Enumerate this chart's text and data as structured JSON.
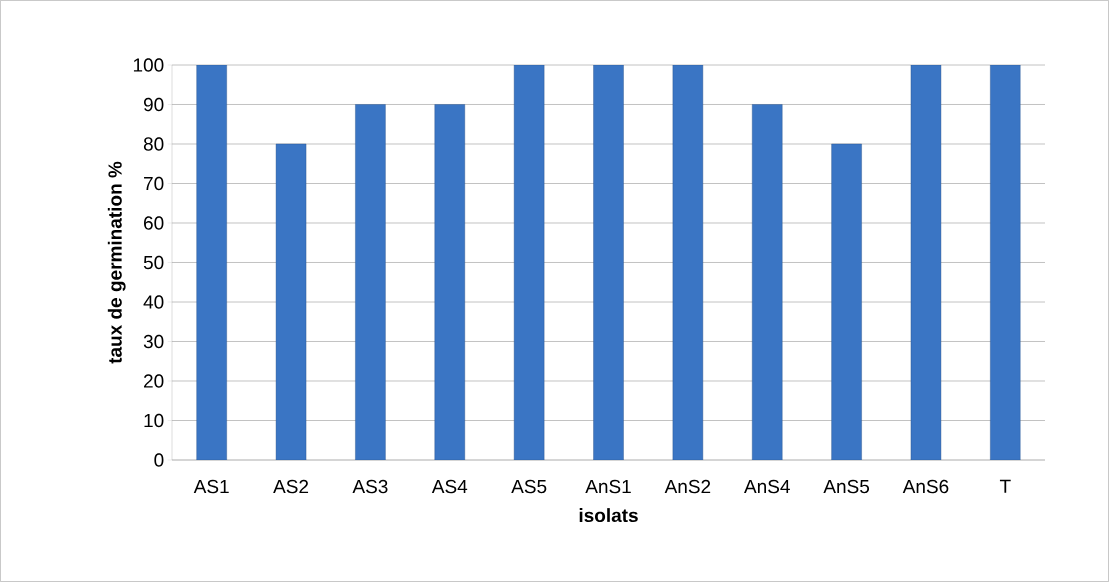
{
  "chart_data": {
    "type": "bar",
    "xlabel": "isolats",
    "ylabel": "taux de germination %",
    "categories": [
      "AS1",
      "AS2",
      "AS3",
      "AS4",
      "AS5",
      "AnS1",
      "AnS2",
      "AnS4",
      "AnS5",
      "AnS6",
      "T"
    ],
    "values": [
      100,
      80,
      90,
      90,
      100,
      100,
      100,
      90,
      80,
      100,
      100
    ],
    "color": "#3a75c4",
    "ylim": [
      0,
      100
    ],
    "yticks": [
      0,
      10,
      20,
      30,
      40,
      50,
      60,
      70,
      80,
      90,
      100
    ],
    "grid": "y"
  }
}
